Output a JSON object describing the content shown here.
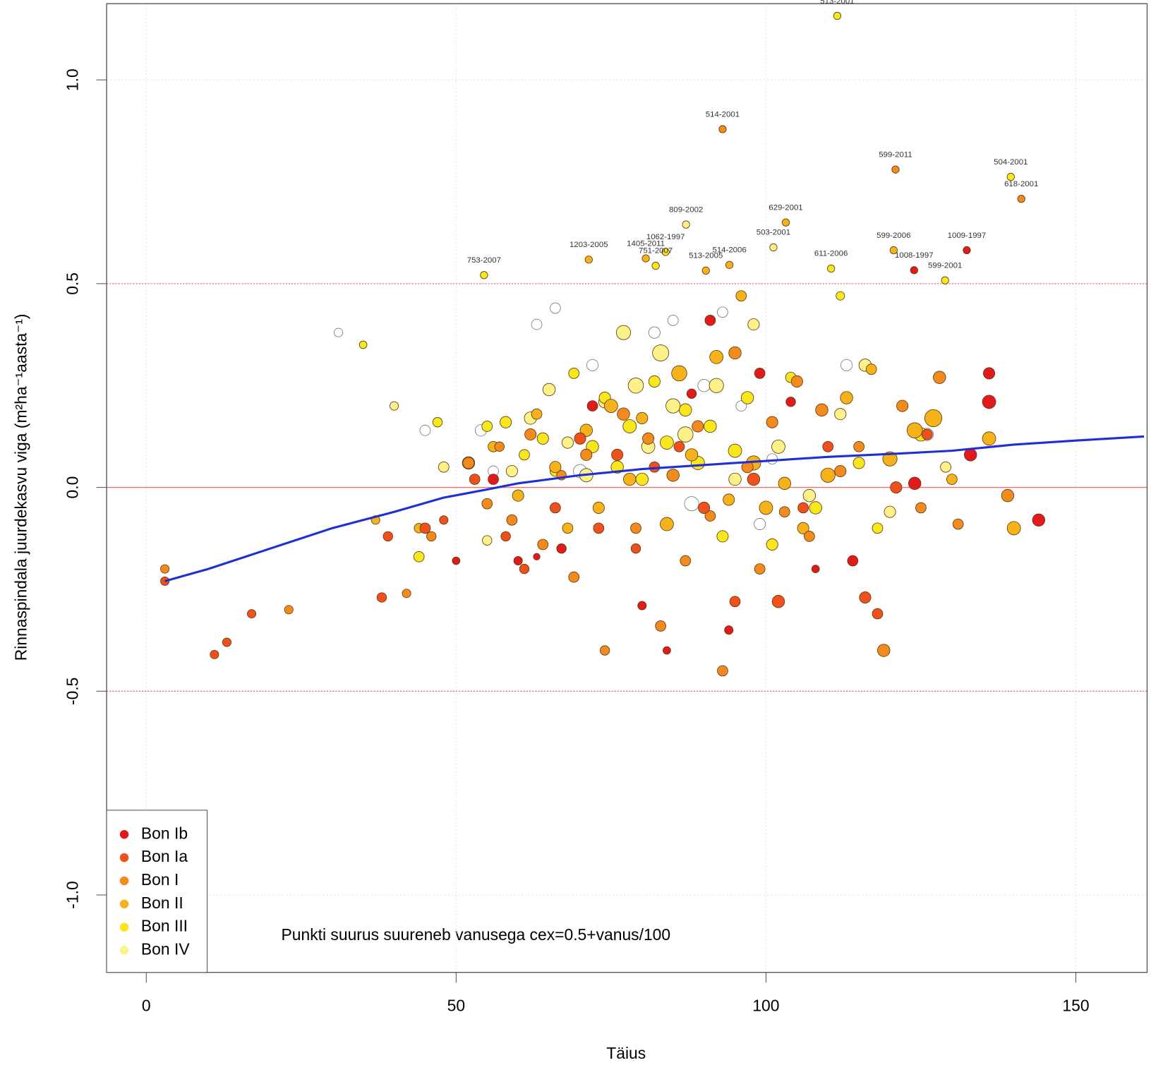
{
  "chart_data": {
    "type": "scatter",
    "x_label": "Täius",
    "y_label": "Rinnaspindala juurdekasvu viga  (m²ha⁻¹aasta⁻¹)",
    "note": "Punkti suurus suureneb vanusega cex=0.5+vanus/100",
    "xlim": [
      -6.4,
      161.5
    ],
    "ylim": [
      -1.19,
      1.187
    ],
    "xticks": [
      0,
      50,
      100,
      150
    ],
    "yticks": [
      {
        "value": -1,
        "label": "-1.0"
      },
      -0.5,
      {
        "value": 0,
        "label": "0.0"
      },
      0.5,
      {
        "value": 1,
        "label": "1.0"
      }
    ],
    "grid": true,
    "legend_position": "bottom-left",
    "reference_lines": [
      0,
      0.5,
      -0.5
    ],
    "series": [
      {
        "color": "none",
        "x": [
          31,
          45,
          54,
          56,
          63,
          66,
          72,
          77,
          82,
          85,
          90,
          93,
          96,
          99,
          101,
          113,
          120,
          126,
          70,
          88
        ],
        "y": [
          0.38,
          0.14,
          0.14,
          0.04,
          0.4,
          0.44,
          0.3,
          0.38,
          0.38,
          0.41,
          0.25,
          0.43,
          0.2,
          -0.09,
          0.07,
          0.3,
          -0.06,
          0.13,
          0.04,
          -0.04
        ],
        "sizes": [
          40,
          60,
          70,
          60,
          60,
          60,
          70,
          80,
          70,
          60,
          80,
          60,
          60,
          70,
          60,
          70,
          60,
          80,
          90,
          100
        ]
      },
      {
        "name": "Bon IV",
        "color": "#fdf28a",
        "x": [
          40,
          48,
          55,
          59,
          62,
          65,
          68,
          71,
          74,
          77,
          79,
          81,
          83,
          85,
          87,
          89,
          92,
          95,
          98,
          102,
          107,
          112,
          116,
          120,
          129
        ],
        "y": [
          0.2,
          0.05,
          -0.13,
          0.04,
          0.17,
          0.24,
          0.11,
          0.03,
          0.21,
          0.38,
          0.25,
          0.1,
          0.33,
          0.2,
          0.13,
          0.06,
          0.25,
          0.02,
          0.4,
          0.1,
          -0.02,
          0.18,
          0.3,
          -0.06,
          0.05
        ],
        "sizes": [
          40,
          60,
          50,
          70,
          80,
          80,
          70,
          90,
          80,
          100,
          110,
          90,
          120,
          100,
          110,
          90,
          100,
          80,
          70,
          90,
          80,
          70,
          80,
          70,
          60
        ]
      },
      {
        "name": "Bon III",
        "color": "#f8e71c",
        "x": [
          35,
          44,
          47,
          55,
          58,
          61,
          64,
          66,
          69,
          72,
          74,
          76,
          78,
          80,
          82,
          84,
          87,
          89,
          91,
          93,
          95,
          97,
          101,
          104,
          108,
          115,
          118,
          125,
          112
        ],
        "y": [
          0.35,
          -0.17,
          0.16,
          0.15,
          0.16,
          0.08,
          0.12,
          0.04,
          0.28,
          0.1,
          0.22,
          0.05,
          0.15,
          0.02,
          0.26,
          0.11,
          0.19,
          0.06,
          0.15,
          -0.12,
          0.09,
          0.22,
          -0.14,
          0.27,
          -0.05,
          0.06,
          -0.1,
          0.13,
          0.47
        ],
        "sizes": [
          30,
          60,
          50,
          60,
          70,
          60,
          70,
          60,
          60,
          80,
          70,
          80,
          90,
          80,
          70,
          90,
          80,
          90,
          80,
          70,
          90,
          80,
          70,
          60,
          80,
          70,
          60,
          90,
          40
        ]
      },
      {
        "name": "Bon II",
        "color": "#f6b21a",
        "x": [
          37,
          44,
          52,
          56,
          60,
          63,
          66,
          68,
          71,
          73,
          75,
          78,
          80,
          84,
          86,
          88,
          92,
          94,
          96,
          98,
          100,
          103,
          106,
          110,
          113,
          117,
          120,
          124,
          127,
          130,
          136,
          140
        ],
        "y": [
          -0.08,
          -0.1,
          0.06,
          0.1,
          -0.02,
          0.18,
          0.05,
          -0.1,
          0.14,
          -0.05,
          0.2,
          0.02,
          0.17,
          -0.09,
          0.28,
          0.08,
          0.32,
          -0.03,
          0.47,
          0.06,
          -0.05,
          0.01,
          -0.1,
          0.03,
          0.22,
          0.29,
          0.07,
          0.14,
          0.17,
          0.02,
          0.12,
          -0.1
        ],
        "sizes": [
          40,
          50,
          80,
          60,
          70,
          60,
          70,
          60,
          80,
          70,
          90,
          80,
          70,
          90,
          110,
          80,
          90,
          70,
          60,
          100,
          90,
          80,
          70,
          100,
          80,
          60,
          100,
          110,
          130,
          60,
          90,
          90
        ]
      },
      {
        "name": "Bon I",
        "color": "#f28a1e",
        "x": [
          3,
          23,
          42,
          46,
          52,
          55,
          57,
          59,
          62,
          64,
          67,
          69,
          71,
          74,
          77,
          79,
          81,
          83,
          85,
          87,
          89,
          91,
          93,
          95,
          97,
          99,
          101,
          103,
          105,
          107,
          109,
          112,
          115,
          119,
          122,
          125,
          128,
          131,
          139
        ],
        "y": [
          -0.2,
          -0.3,
          -0.26,
          -0.12,
          0.06,
          -0.04,
          0.1,
          -0.08,
          0.13,
          -0.14,
          0.03,
          -0.22,
          0.08,
          -0.4,
          0.18,
          -0.1,
          0.12,
          -0.34,
          0.03,
          -0.18,
          0.15,
          -0.07,
          -0.45,
          0.33,
          0.05,
          -0.2,
          0.16,
          -0.06,
          0.26,
          -0.12,
          0.19,
          0.04,
          0.1,
          -0.4,
          0.2,
          -0.05,
          0.27,
          -0.09,
          -0.02
        ],
        "sizes": [
          40,
          40,
          40,
          50,
          70,
          60,
          50,
          60,
          70,
          60,
          50,
          60,
          70,
          50,
          80,
          60,
          70,
          60,
          80,
          60,
          70,
          60,
          60,
          80,
          70,
          60,
          70,
          60,
          70,
          60,
          80,
          70,
          60,
          80,
          70,
          60,
          80,
          60,
          80
        ]
      },
      {
        "name": "Bon Ia",
        "color": "#f0501c",
        "x": [
          3,
          11,
          13,
          38,
          39,
          45,
          48,
          53,
          58,
          61,
          66,
          70,
          73,
          76,
          79,
          82,
          86,
          90,
          95,
          98,
          102,
          106,
          110,
          116,
          118,
          121,
          126,
          17
        ],
        "y": [
          -0.23,
          -0.41,
          -0.38,
          -0.27,
          -0.12,
          -0.1,
          -0.08,
          0.02,
          -0.12,
          -0.2,
          -0.05,
          0.12,
          -0.1,
          0.08,
          -0.15,
          0.05,
          0.1,
          -0.05,
          -0.28,
          0.02,
          -0.28,
          -0.05,
          0.1,
          -0.27,
          -0.31,
          0.0,
          0.13,
          -0.31
        ],
        "sizes": [
          40,
          40,
          40,
          50,
          50,
          60,
          40,
          60,
          50,
          50,
          60,
          70,
          60,
          70,
          50,
          60,
          60,
          70,
          60,
          80,
          80,
          60,
          60,
          70,
          60,
          70,
          60,
          40
        ]
      },
      {
        "name": "Bon Ib",
        "color": "#e31a1c",
        "x": [
          50,
          60,
          63,
          72,
          80,
          84,
          88,
          94,
          99,
          104,
          108,
          114,
          124,
          133,
          136,
          136,
          144,
          56,
          67,
          91
        ],
        "y": [
          -0.18,
          -0.18,
          -0.17,
          0.2,
          -0.29,
          -0.4,
          0.23,
          -0.35,
          0.28,
          0.21,
          -0.2,
          -0.18,
          0.01,
          0.08,
          0.21,
          0.28,
          -0.08,
          0.02,
          -0.15,
          0.41
        ],
        "sizes": [
          30,
          40,
          20,
          60,
          40,
          30,
          50,
          40,
          60,
          50,
          30,
          60,
          80,
          80,
          90,
          70,
          80,
          60,
          50,
          60
        ]
      }
    ],
    "labeled_points": [
      {
        "label": "513-2001",
        "x": 111.5,
        "y": 1.157,
        "color": "#f8e71c"
      },
      {
        "label": "514-2001",
        "x": 93.0,
        "y": 0.879,
        "color": "#f28a1e"
      },
      {
        "label": "599-2011",
        "x": 120.9,
        "y": 0.78,
        "color": "#f28a1e"
      },
      {
        "label": "504-2001",
        "x": 139.5,
        "y": 0.762,
        "color": "#f8e71c"
      },
      {
        "label": "618-2001",
        "x": 141.2,
        "y": 0.708,
        "color": "#f28a1e"
      },
      {
        "label": "809-2002",
        "x": 87.1,
        "y": 0.645,
        "color": "#fdf28a"
      },
      {
        "label": "629-2001",
        "x": 103.2,
        "y": 0.65,
        "color": "#f6b21a"
      },
      {
        "label": "1062-1997",
        "x": 83.8,
        "y": 0.578,
        "color": "#f8e71c"
      },
      {
        "label": "503-2001",
        "x": 101.2,
        "y": 0.589,
        "color": "#fdf28a"
      },
      {
        "label": "1203-2005",
        "x": 71.4,
        "y": 0.559,
        "color": "#f6b21a"
      },
      {
        "label": "1405-2011",
        "x": 80.6,
        "y": 0.562,
        "color": "#f6b21a"
      },
      {
        "label": "751-2007",
        "x": 82.2,
        "y": 0.544,
        "color": "#f8e71c"
      },
      {
        "label": "513-2005",
        "x": 90.3,
        "y": 0.532,
        "color": "#f6b21a"
      },
      {
        "label": "514-2006",
        "x": 94.1,
        "y": 0.546,
        "color": "#f6b21a"
      },
      {
        "label": "611-2006",
        "x": 110.5,
        "y": 0.537,
        "color": "#f8e71c"
      },
      {
        "label": "599-2006",
        "x": 120.6,
        "y": 0.582,
        "color": "#f6b21a"
      },
      {
        "label": "1009-1997",
        "x": 132.4,
        "y": 0.582,
        "color": "#e31a1c"
      },
      {
        "label": "1008-1997",
        "x": 123.9,
        "y": 0.533,
        "color": "#e31a1c"
      },
      {
        "label": "599-2001",
        "x": 128.9,
        "y": 0.508,
        "color": "#f8e71c"
      },
      {
        "label": "753-2007",
        "x": 54.5,
        "y": 0.521,
        "color": "#f8e71c"
      }
    ],
    "smooth": {
      "color": "#1f2fd6",
      "x": [
        3,
        10,
        20,
        30,
        40,
        48,
        55,
        60,
        70,
        80,
        90,
        100,
        110,
        120,
        130,
        140,
        150,
        161
      ],
      "y": [
        -0.23,
        -0.2,
        -0.15,
        -0.1,
        -0.06,
        -0.025,
        -0.005,
        0.01,
        0.03,
        0.045,
        0.055,
        0.065,
        0.075,
        0.082,
        0.09,
        0.105,
        0.115,
        0.125
      ]
    }
  }
}
